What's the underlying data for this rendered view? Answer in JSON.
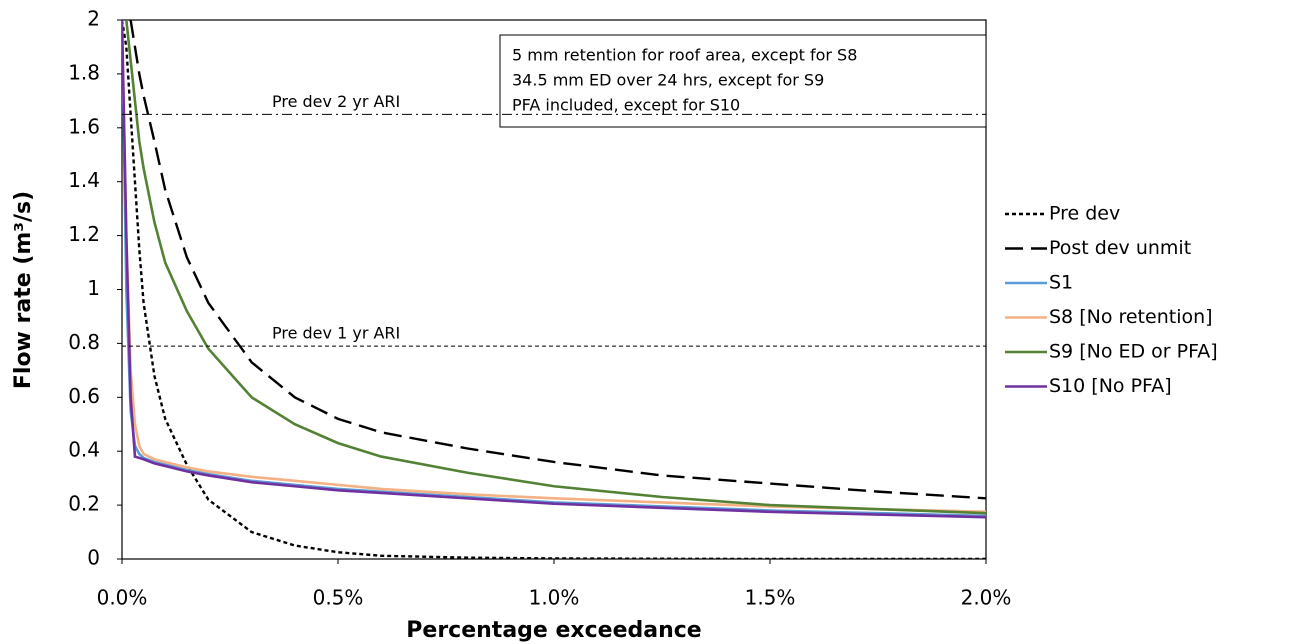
{
  "chart_data": {
    "type": "line",
    "x_label": "Percentage exceedance",
    "y_label": "Flow rate (m³/s)",
    "annotation": [
      "5 mm retention for roof area, except for S8",
      "34.5 mm ED over 24 hrs, except for S9",
      "PFA included, except for S10"
    ],
    "reference_lines": [
      {
        "label": "Pre dev 2 yr ARI",
        "value": 1.65,
        "style": "dashdot"
      },
      {
        "label": "Pre dev 1 yr ARI",
        "value": 0.79,
        "style": "dotted"
      }
    ],
    "xlim": [
      0,
      2
    ],
    "xticks": [
      {
        "value": 0,
        "label": "0.0%"
      },
      {
        "value": 0.5,
        "label": "0.5%"
      },
      {
        "value": 1,
        "label": "1.0%"
      },
      {
        "value": 1.5,
        "label": "1.5%"
      },
      {
        "value": 2,
        "label": "2.0%"
      }
    ],
    "ylim": [
      0,
      2
    ],
    "yticks": [
      0,
      0.2,
      0.4,
      0.6,
      0.8,
      1,
      1.2,
      1.4,
      1.6,
      1.8,
      2
    ],
    "x": [
      0,
      0.01,
      0.02,
      0.03,
      0.04,
      0.05,
      0.075,
      0.1,
      0.15,
      0.2,
      0.3,
      0.4,
      0.5,
      0.6,
      0.8,
      1.0,
      1.25,
      1.5,
      1.75,
      2.0
    ],
    "series": [
      {
        "name": "Pre dev",
        "color": "#000000",
        "style": "dotted",
        "values": [
          2.0,
          1.9,
          1.65,
          1.4,
          1.15,
          0.95,
          0.68,
          0.52,
          0.35,
          0.22,
          0.1,
          0.05,
          0.025,
          0.012,
          0.005,
          0.002,
          0.001,
          0,
          0,
          0
        ]
      },
      {
        "name": "Post dev unmit",
        "color": "#000000",
        "style": "dashed",
        "values": [
          null,
          null,
          2.0,
          1.9,
          1.8,
          1.72,
          1.55,
          1.37,
          1.12,
          0.95,
          0.73,
          0.6,
          0.52,
          0.47,
          0.41,
          0.36,
          0.31,
          0.28,
          0.25,
          0.225
        ]
      },
      {
        "name": "S1",
        "color": "#5b9bd5",
        "style": "solid",
        "values": [
          2.0,
          1.0,
          0.55,
          0.42,
          0.39,
          0.375,
          0.36,
          0.35,
          0.33,
          0.315,
          0.29,
          0.275,
          0.26,
          0.25,
          0.23,
          0.21,
          0.195,
          0.18,
          0.17,
          0.16
        ]
      },
      {
        "name": "S8 [No retention]",
        "color": "#f4b183",
        "style": "solid",
        "values": [
          2.0,
          1.2,
          0.7,
          0.5,
          0.42,
          0.39,
          0.37,
          0.36,
          0.34,
          0.325,
          0.305,
          0.29,
          0.275,
          0.26,
          0.24,
          0.225,
          0.21,
          0.195,
          0.185,
          0.175
        ]
      },
      {
        "name": "S9 [No ED or PFA]",
        "color": "#548235",
        "style": "solid",
        "values": [
          null,
          2.0,
          1.85,
          1.7,
          1.55,
          1.45,
          1.25,
          1.1,
          0.92,
          0.78,
          0.6,
          0.5,
          0.43,
          0.38,
          0.32,
          0.27,
          0.23,
          0.2,
          0.185,
          0.17
        ]
      },
      {
        "name": "S10 [No PFA]",
        "color": "#7030a0",
        "style": "solid",
        "values": [
          2.0,
          1.2,
          0.6,
          0.38,
          0.375,
          0.37,
          0.355,
          0.345,
          0.325,
          0.31,
          0.285,
          0.27,
          0.255,
          0.245,
          0.225,
          0.205,
          0.19,
          0.175,
          0.165,
          0.155
        ]
      }
    ]
  }
}
